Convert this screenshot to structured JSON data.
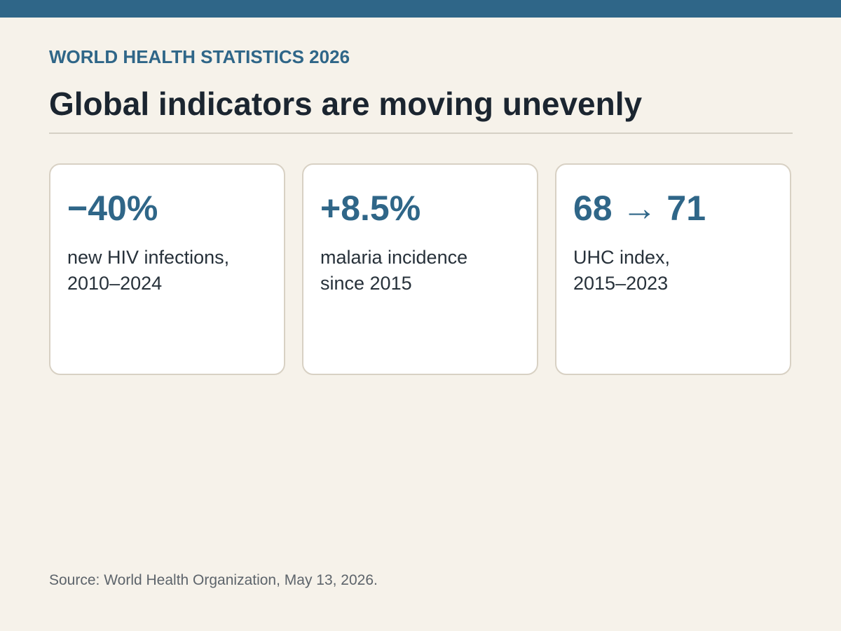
{
  "header": {
    "kicker": "WORLD HEALTH STATISTICS 2026",
    "title": "Global indicators are moving unevenly"
  },
  "cards": [
    {
      "value": "−40%",
      "label_lines": [
        "new HIV infections,",
        "2010–2024"
      ]
    },
    {
      "value": "+8.5%",
      "label_lines": [
        "malaria incidence",
        "since 2015"
      ]
    },
    {
      "value": "68 → 71",
      "label_lines": [
        "UHC index,",
        "2015–2023"
      ]
    }
  ],
  "footer": {
    "source": "Source: World Health Organization, May 13, 2026."
  },
  "colors": {
    "accent": "#2f6688",
    "background": "#f6f2ea",
    "card_border": "#d8d1c4",
    "title_text": "#1b2530"
  }
}
